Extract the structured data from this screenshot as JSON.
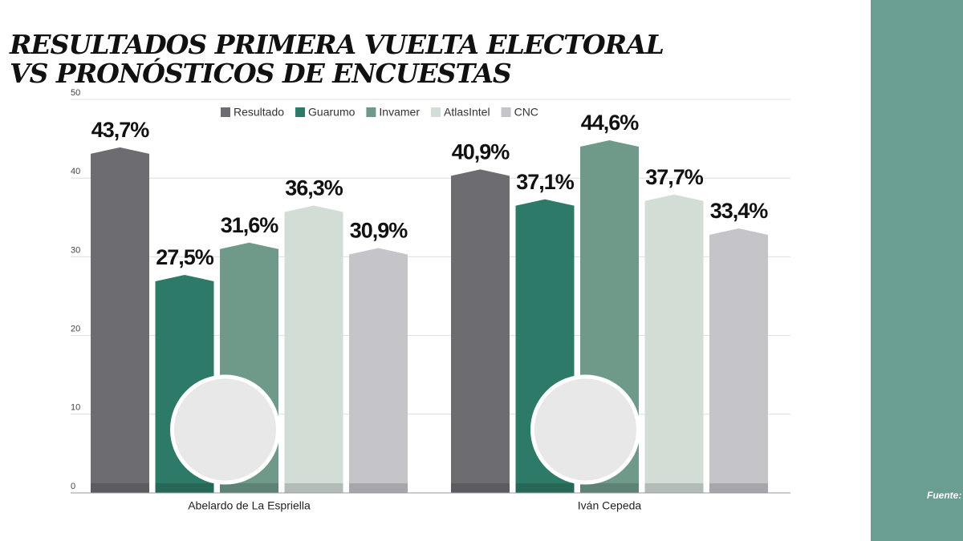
{
  "chart_data": {
    "type": "bar",
    "title": [
      "RESULTADOS PRIMERA VUELTA ELECTORAL",
      "VS PRONÓSTICOS DE ENCUESTAS"
    ],
    "categories": [
      "Abelardo de La Espriella",
      "Iván Cepeda"
    ],
    "series": [
      {
        "name": "Resultado",
        "color": "#6d6c70",
        "values": [
          43.7,
          40.9
        ],
        "value_labels": [
          "43,7%",
          "40,9%"
        ]
      },
      {
        "name": "Guarumo",
        "color": "#2e7a68",
        "values": [
          27.5,
          37.1
        ],
        "value_labels": [
          "27,5%",
          "37,1%"
        ]
      },
      {
        "name": "Invamer",
        "color": "#6f9a8a",
        "values": [
          31.6,
          44.6
        ],
        "value_labels": [
          "31,6%",
          "44,6%"
        ]
      },
      {
        "name": "AtlasIntel",
        "color": "#d2ddd6",
        "values": [
          36.3,
          37.7
        ],
        "value_labels": [
          "36,3%",
          "37,7%"
        ]
      },
      {
        "name": "CNC",
        "color": "#c5c5c9",
        "values": [
          30.9,
          33.4
        ],
        "value_labels": [
          "30,9%",
          "33,4%"
        ]
      }
    ],
    "ylim": [
      0,
      50
    ],
    "yticks": [
      0,
      10,
      20,
      30,
      40,
      50
    ],
    "grid": true,
    "legend": "top",
    "source": "Fuente:"
  }
}
